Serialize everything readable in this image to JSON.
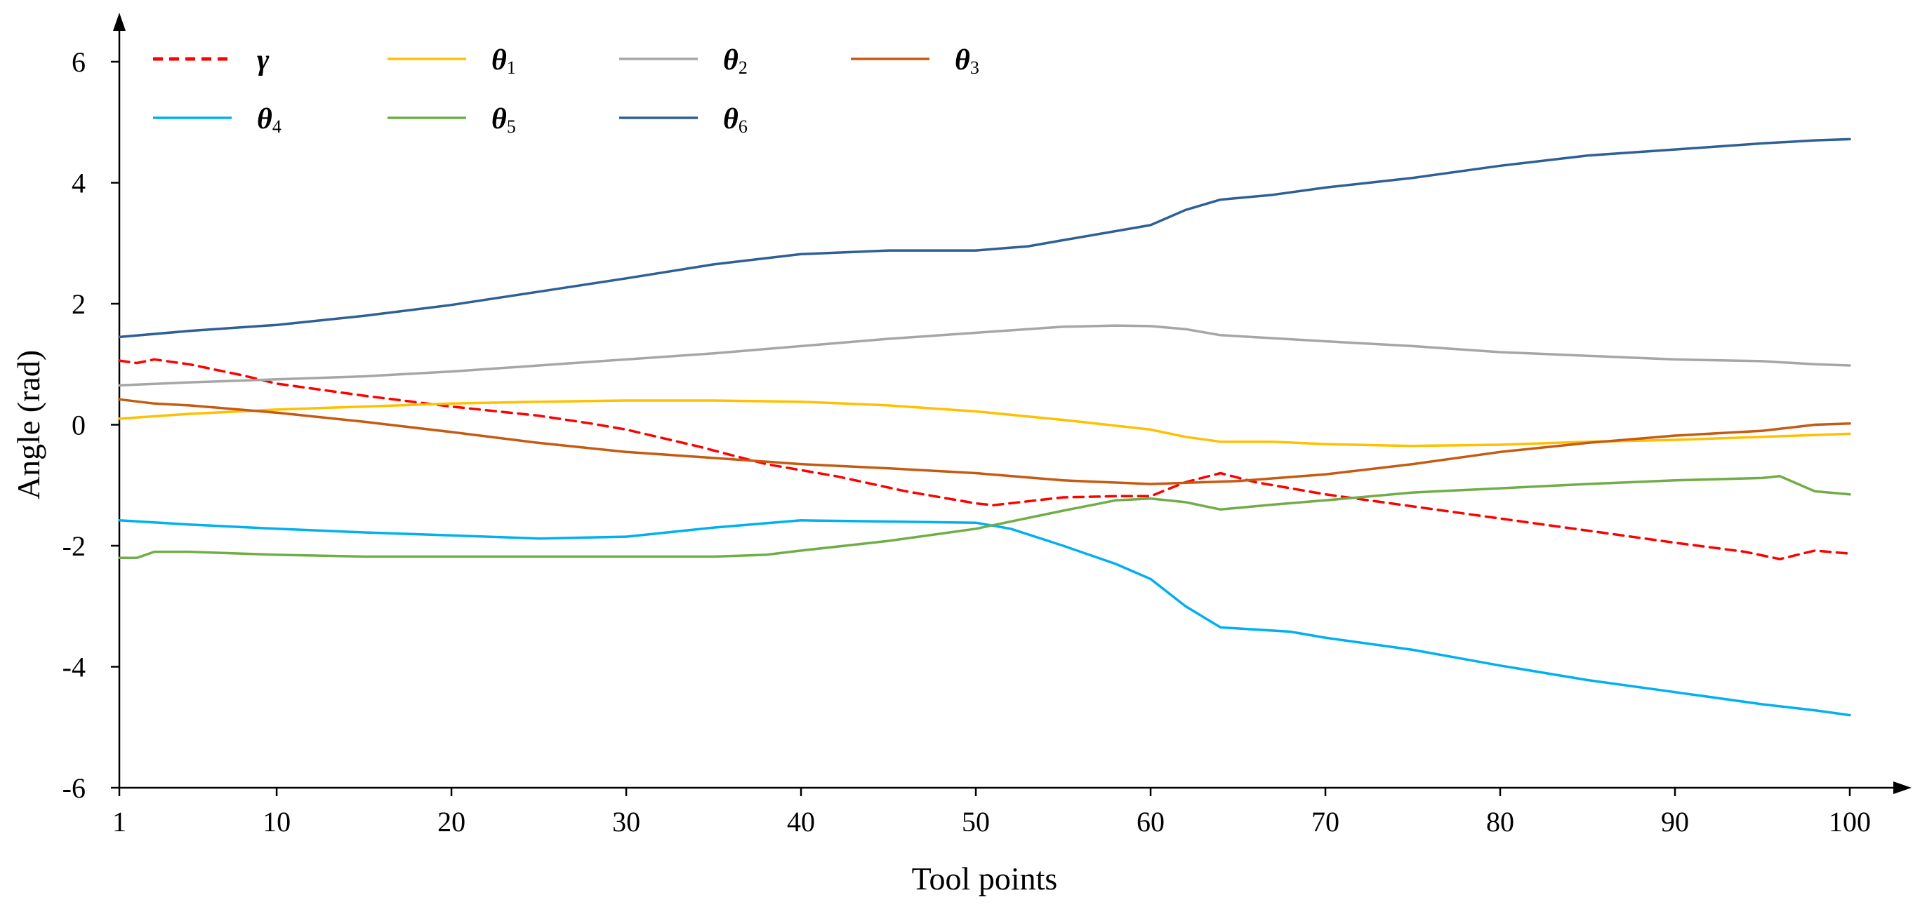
{
  "chart_data": {
    "type": "line",
    "title": "",
    "xlabel": "Tool points",
    "ylabel": "Angle (rad)",
    "xlim": [
      1,
      100
    ],
    "ylim": [
      -6,
      6
    ],
    "x_ticks": [
      1,
      10,
      20,
      30,
      40,
      50,
      60,
      70,
      80,
      90,
      100
    ],
    "y_ticks": [
      6,
      4,
      2,
      0,
      -2,
      -4,
      -6
    ],
    "grid": false,
    "legend_position": "top-left",
    "series": [
      {
        "name": "γ",
        "symbol": "γ",
        "subscript": "",
        "color": "#ff0000",
        "dashed": true,
        "x": [
          1,
          2,
          3,
          5,
          8,
          10,
          15,
          20,
          25,
          28,
          30,
          34,
          38,
          42,
          46,
          50,
          51,
          55,
          58,
          60,
          62,
          64,
          66,
          70,
          75,
          80,
          85,
          90,
          94,
          96,
          98,
          100
        ],
        "y": [
          1.06,
          1.02,
          1.08,
          1.0,
          0.82,
          0.68,
          0.48,
          0.3,
          0.15,
          0.02,
          -0.08,
          -0.35,
          -0.65,
          -0.85,
          -1.1,
          -1.3,
          -1.33,
          -1.2,
          -1.18,
          -1.18,
          -0.95,
          -0.8,
          -0.95,
          -1.15,
          -1.35,
          -1.55,
          -1.75,
          -1.95,
          -2.1,
          -2.22,
          -2.08,
          -2.13
        ]
      },
      {
        "name": "θ1",
        "symbol": "θ",
        "subscript": "1",
        "color": "#ffc000",
        "dashed": false,
        "x": [
          1,
          5,
          10,
          15,
          20,
          25,
          30,
          35,
          40,
          45,
          50,
          55,
          60,
          62,
          64,
          67,
          70,
          75,
          80,
          85,
          90,
          95,
          100
        ],
        "y": [
          0.1,
          0.18,
          0.25,
          0.3,
          0.35,
          0.38,
          0.4,
          0.4,
          0.38,
          0.32,
          0.22,
          0.08,
          -0.08,
          -0.2,
          -0.28,
          -0.28,
          -0.32,
          -0.35,
          -0.33,
          -0.28,
          -0.25,
          -0.2,
          -0.15
        ]
      },
      {
        "name": "θ2",
        "symbol": "θ",
        "subscript": "2",
        "color": "#a6a6a6",
        "dashed": false,
        "x": [
          1,
          5,
          10,
          15,
          20,
          25,
          30,
          35,
          40,
          45,
          50,
          55,
          58,
          60,
          62,
          64,
          70,
          75,
          80,
          85,
          90,
          95,
          98,
          100
        ],
        "y": [
          0.65,
          0.7,
          0.75,
          0.8,
          0.88,
          0.98,
          1.08,
          1.18,
          1.3,
          1.42,
          1.52,
          1.62,
          1.64,
          1.63,
          1.58,
          1.48,
          1.38,
          1.3,
          1.2,
          1.14,
          1.08,
          1.05,
          1.0,
          0.98
        ]
      },
      {
        "name": "θ3",
        "symbol": "θ",
        "subscript": "3",
        "color": "#c55a11",
        "dashed": false,
        "x": [
          1,
          3,
          5,
          10,
          15,
          20,
          25,
          30,
          35,
          40,
          45,
          50,
          55,
          60,
          65,
          70,
          75,
          80,
          85,
          90,
          95,
          98,
          100
        ],
        "y": [
          0.42,
          0.35,
          0.32,
          0.2,
          0.05,
          -0.12,
          -0.3,
          -0.45,
          -0.55,
          -0.65,
          -0.72,
          -0.8,
          -0.92,
          -0.98,
          -0.93,
          -0.82,
          -0.65,
          -0.45,
          -0.3,
          -0.18,
          -0.1,
          0.0,
          0.02
        ]
      },
      {
        "name": "θ4",
        "symbol": "θ",
        "subscript": "4",
        "color": "#00b0f0",
        "dashed": false,
        "x": [
          1,
          5,
          10,
          15,
          20,
          25,
          30,
          35,
          40,
          45,
          50,
          52,
          55,
          58,
          60,
          62,
          64,
          68,
          70,
          75,
          80,
          85,
          90,
          95,
          98,
          100
        ],
        "y": [
          -1.58,
          -1.65,
          -1.72,
          -1.78,
          -1.83,
          -1.88,
          -1.85,
          -1.7,
          -1.58,
          -1.6,
          -1.62,
          -1.72,
          -2.0,
          -2.3,
          -2.55,
          -3.0,
          -3.35,
          -3.42,
          -3.52,
          -3.72,
          -3.98,
          -4.22,
          -4.42,
          -4.62,
          -4.72,
          -4.8
        ]
      },
      {
        "name": "θ5",
        "symbol": "θ",
        "subscript": "5",
        "color": "#70ad47",
        "dashed": false,
        "x": [
          1,
          2,
          3,
          5,
          10,
          15,
          20,
          25,
          30,
          35,
          38,
          40,
          45,
          50,
          55,
          58,
          60,
          62,
          64,
          67,
          70,
          75,
          80,
          85,
          90,
          95,
          96,
          98,
          100
        ],
        "y": [
          -2.2,
          -2.2,
          -2.1,
          -2.1,
          -2.15,
          -2.18,
          -2.18,
          -2.18,
          -2.18,
          -2.18,
          -2.15,
          -2.08,
          -1.92,
          -1.72,
          -1.42,
          -1.25,
          -1.22,
          -1.28,
          -1.4,
          -1.32,
          -1.25,
          -1.12,
          -1.05,
          -0.98,
          -0.92,
          -0.88,
          -0.85,
          -1.1,
          -1.15
        ]
      },
      {
        "name": "θ6",
        "symbol": "θ",
        "subscript": "6",
        "color": "#2e5f96",
        "dashed": false,
        "x": [
          1,
          5,
          10,
          15,
          20,
          25,
          30,
          35,
          40,
          45,
          48,
          50,
          53,
          55,
          58,
          60,
          62,
          64,
          67,
          70,
          75,
          80,
          85,
          90,
          95,
          98,
          100
        ],
        "y": [
          1.45,
          1.55,
          1.65,
          1.8,
          1.98,
          2.2,
          2.42,
          2.65,
          2.82,
          2.88,
          2.88,
          2.88,
          2.95,
          3.05,
          3.2,
          3.3,
          3.55,
          3.72,
          3.8,
          3.92,
          4.08,
          4.28,
          4.45,
          4.55,
          4.65,
          4.7,
          4.72
        ]
      }
    ]
  }
}
